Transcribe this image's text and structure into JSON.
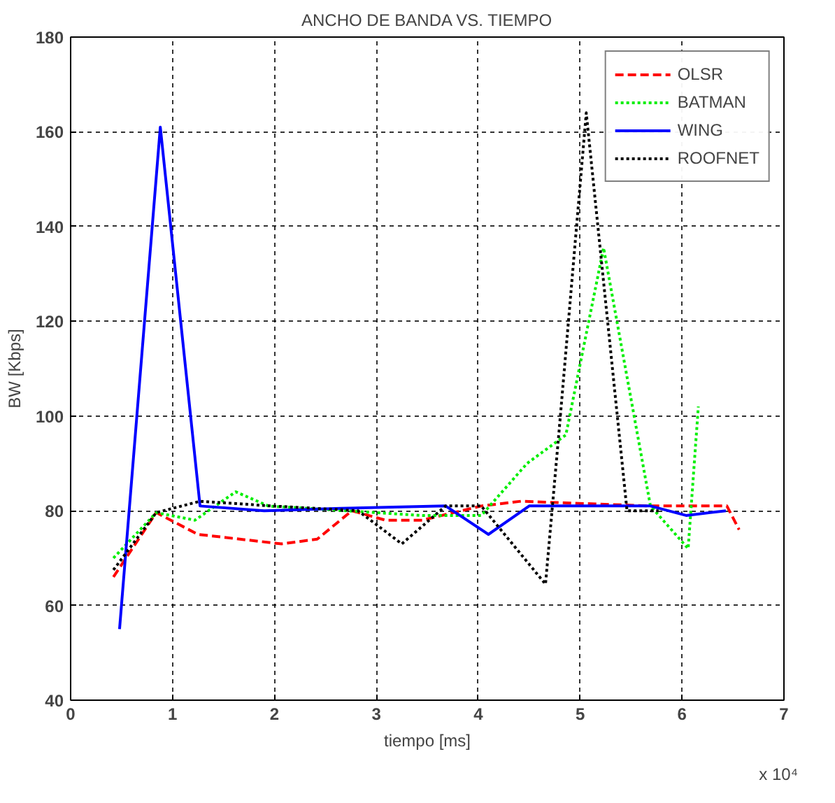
{
  "chart_data": {
    "type": "line",
    "title": "ANCHO DE BANDA VS. TIEMPO",
    "xlabel": "tiempo [ms]",
    "ylabel": "BW [Kbps]",
    "annotations": [
      "x 10⁴"
    ],
    "xlim": [
      0,
      7
    ],
    "xticks": [
      0,
      1,
      2,
      3,
      4,
      5,
      6,
      7
    ],
    "ylim": [
      40,
      180
    ],
    "yticks": [
      40,
      60,
      80,
      100,
      120,
      140,
      160,
      180
    ],
    "grid": true,
    "legend": "top right",
    "series": [
      {
        "name": "OLSR",
        "color": "#ff0000",
        "line_style": "dashed",
        "x": [
          0.42,
          0.84,
          1.25,
          2.07,
          2.42,
          2.76,
          3.09,
          3.45,
          4.03,
          4.42,
          5.69,
          6.44,
          6.56
        ],
        "values": [
          66,
          79.6,
          75,
          73,
          74,
          80,
          78,
          78,
          81,
          82,
          81,
          81,
          76
        ]
      },
      {
        "name": "BATMAN",
        "color": "#00ee00",
        "line_style": "dotted",
        "x": [
          0.42,
          0.84,
          1.22,
          1.62,
          1.94,
          3.45,
          4.03,
          4.48,
          4.86,
          5.23,
          5.69,
          6.06,
          6.16
        ],
        "values": [
          70,
          79.6,
          78,
          84,
          81,
          79,
          79,
          90,
          96,
          135.5,
          81,
          72,
          102
        ]
      },
      {
        "name": "WING",
        "color": "#0000ff",
        "line_style": "solid",
        "x": [
          0.48,
          0.88,
          1.27,
          1.9,
          2.65,
          3.68,
          4.1,
          4.5,
          5.69,
          6.04,
          6.43
        ],
        "values": [
          55,
          161,
          81,
          80,
          80.5,
          81,
          75,
          81,
          81,
          79,
          80
        ]
      },
      {
        "name": "ROOFNET",
        "color": "#000000",
        "line_style": "dotted",
        "x": [
          0.42,
          0.84,
          1.27,
          1.98,
          2.82,
          3.25,
          3.68,
          4.03,
          4.66,
          4.79,
          5.06,
          5.46,
          5.77
        ],
        "values": [
          67.5,
          79.6,
          82,
          81,
          80,
          73,
          81,
          81,
          64.5,
          96,
          164,
          80,
          80
        ]
      }
    ]
  }
}
